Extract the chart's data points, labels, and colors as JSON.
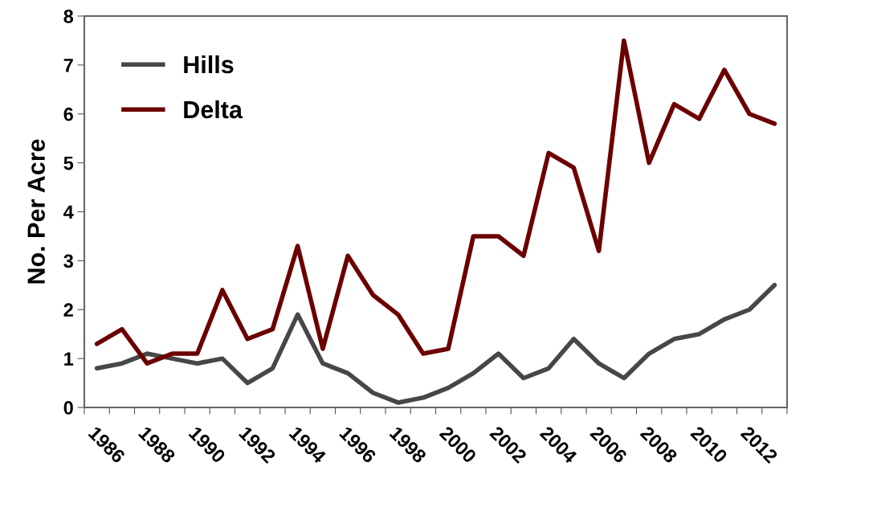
{
  "chart_data": {
    "type": "line",
    "ylabel": "No. Per Acre",
    "categories": [
      "1986",
      null,
      "1988",
      null,
      "1990",
      null,
      "1992",
      null,
      "1994",
      null,
      "1996",
      null,
      "1998",
      null,
      "2000",
      null,
      "2002",
      null,
      "2004",
      null,
      "2006",
      null,
      "2008",
      null,
      "2010",
      null,
      "2012",
      null
    ],
    "series": [
      {
        "name": "Hills",
        "color": "#474747",
        "values": [
          0.8,
          0.9,
          1.1,
          1.0,
          0.9,
          1.0,
          0.5,
          0.8,
          1.9,
          0.9,
          0.7,
          0.3,
          0.1,
          0.2,
          0.4,
          0.7,
          1.1,
          0.6,
          0.8,
          1.4,
          0.9,
          0.6,
          1.1,
          1.4,
          1.5,
          1.8,
          2.0,
          2.5
        ]
      },
      {
        "name": "Delta",
        "color": "#6b0000",
        "values": [
          1.3,
          1.6,
          0.9,
          1.1,
          1.1,
          2.4,
          1.4,
          1.6,
          3.3,
          1.2,
          3.1,
          2.3,
          1.9,
          1.1,
          1.2,
          3.5,
          3.5,
          3.1,
          5.2,
          4.9,
          3.2,
          7.5,
          5.0,
          6.2,
          5.9,
          6.9,
          6.0,
          5.8
        ]
      }
    ],
    "ylim": [
      0,
      8
    ],
    "yticks": [
      0,
      1,
      2,
      3,
      4,
      5,
      6,
      7,
      8
    ],
    "grid": false,
    "legend": "top left",
    "marker": "none",
    "line_style": "solid"
  }
}
